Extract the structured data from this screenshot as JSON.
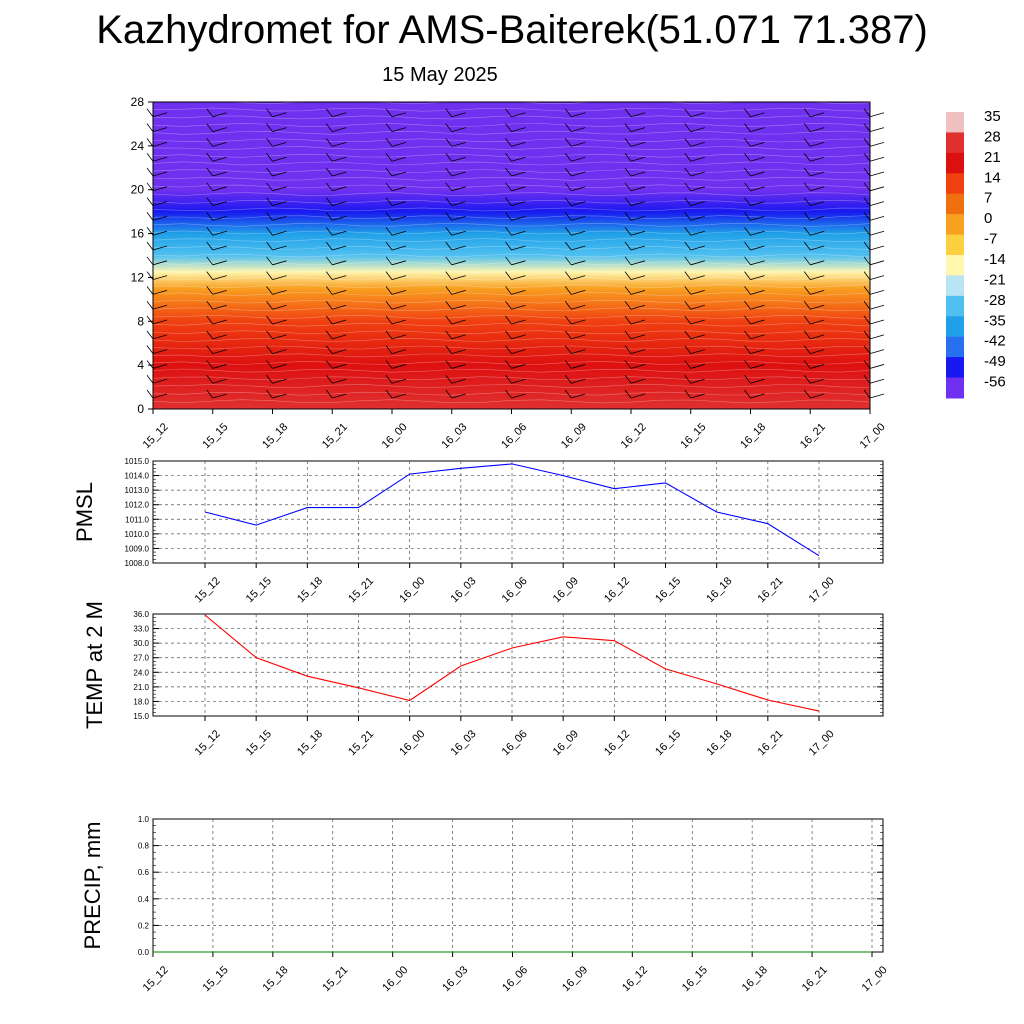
{
  "header": {
    "title": "Kazhydromet for AMS-Baiterek(51.071 71.387)",
    "date": "15 May 2025"
  },
  "chart_data": [
    {
      "type": "heatmap",
      "name": "upper-air-temperature",
      "xlabel": "",
      "ylabel": "",
      "x_ticks": [
        "15_12",
        "15_15",
        "15_18",
        "15_21",
        "16_00",
        "16_03",
        "16_06",
        "16_09",
        "16_12",
        "16_15",
        "16_18",
        "16_21",
        "17_00"
      ],
      "y_ticks": [
        0,
        4,
        8,
        12,
        16,
        20,
        24,
        28
      ],
      "ylim": [
        0,
        28
      ],
      "colorbar_ticks": [
        35,
        28,
        21,
        14,
        7,
        0,
        -7,
        -14,
        -21,
        -28,
        -35,
        -42,
        -49,
        -56
      ],
      "colorbar_colors": [
        "#f0c0c0",
        "#e03030",
        "#dd1010",
        "#f04010",
        "#f07010",
        "#f8a020",
        "#fcd040",
        "#fff6b0",
        "#b8e4f4",
        "#50c0f0",
        "#20a0e8",
        "#2870f0",
        "#1818f0",
        "#7030f0"
      ],
      "temperature_profile": [
        {
          "level": 0,
          "value": 28
        },
        {
          "level": 4,
          "value": 24
        },
        {
          "level": 8,
          "value": 14
        },
        {
          "level": 11,
          "value": 4
        },
        {
          "level": 12.5,
          "value": -8
        },
        {
          "level": 14,
          "value": -22
        },
        {
          "level": 16,
          "value": -34
        },
        {
          "level": 18,
          "value": -44
        },
        {
          "level": 20,
          "value": -52
        },
        {
          "level": 22,
          "value": -50
        },
        {
          "level": 24,
          "value": -56
        },
        {
          "level": 28,
          "value": -60
        }
      ]
    },
    {
      "type": "line",
      "name": "pmsl",
      "ylabel": "PMSL",
      "xlabel": "",
      "x": [
        "15_12",
        "15_15",
        "15_18",
        "15_21",
        "16_00",
        "16_03",
        "16_06",
        "16_09",
        "16_12",
        "16_15",
        "16_18",
        "16_21",
        "17_00"
      ],
      "series": [
        {
          "values": [
            1011.5,
            1010.6,
            1011.8,
            1011.8,
            1014.1,
            1014.5,
            1014.8,
            1014.0,
            1013.1,
            1013.5,
            1011.5,
            1010.7,
            1008.5
          ],
          "color": "#0000ff"
        }
      ],
      "ylim": [
        1008.0,
        1015.0
      ],
      "y_ticks": [
        "1008.0",
        "1009.0",
        "1010.0",
        "1011.0",
        "1012.0",
        "1013.0",
        "1014.0",
        "1015.0"
      ]
    },
    {
      "type": "line",
      "name": "temp-2m",
      "ylabel": "TEMP at 2 M",
      "xlabel": "",
      "x": [
        "15_12",
        "15_15",
        "15_18",
        "15_21",
        "16_00",
        "16_03",
        "16_06",
        "16_09",
        "16_12",
        "16_15",
        "16_18",
        "16_21",
        "17_00"
      ],
      "series": [
        {
          "values": [
            35.8,
            27.0,
            23.2,
            20.8,
            18.2,
            25.3,
            29.0,
            31.3,
            30.5,
            24.7,
            21.6,
            18.3,
            16.0
          ],
          "color": "#ff0000"
        }
      ],
      "ylim": [
        15.0,
        36.0
      ],
      "y_ticks": [
        "15.0",
        "18.0",
        "21.0",
        "24.0",
        "27.0",
        "30.0",
        "33.0",
        "36.0"
      ]
    },
    {
      "type": "line",
      "name": "precip",
      "ylabel": "PRECIP, mm",
      "xlabel": "",
      "x": [
        "15_12",
        "15_15",
        "15_18",
        "15_21",
        "16_00",
        "16_03",
        "16_06",
        "16_09",
        "16_12",
        "16_15",
        "16_18",
        "16_21",
        "17_00"
      ],
      "series": [
        {
          "values": [
            0,
            0,
            0,
            0,
            0,
            0,
            0,
            0,
            0,
            0,
            0,
            0,
            0
          ],
          "color": "#008000"
        }
      ],
      "ylim": [
        0.0,
        1.0
      ],
      "y_ticks": [
        "0.0",
        "0.2",
        "0.4",
        "0.6",
        "0.8",
        "1.0"
      ]
    }
  ]
}
